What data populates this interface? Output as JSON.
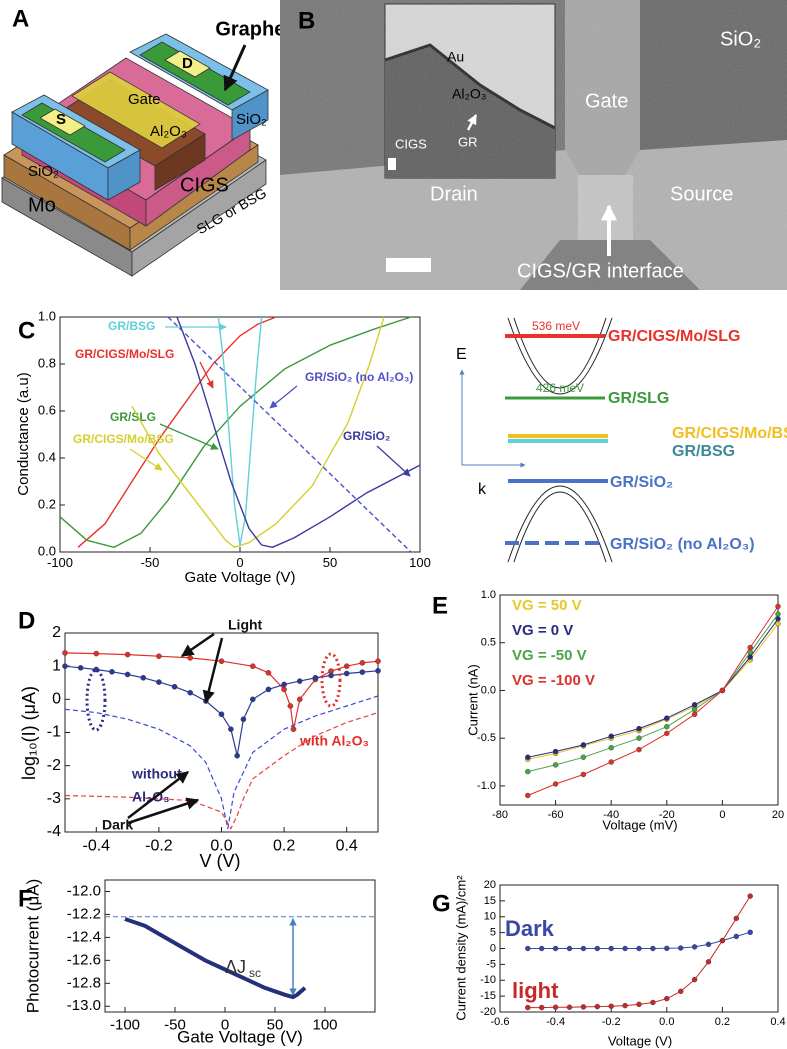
{
  "panel_a": {
    "label": "A",
    "labels": [
      "Graphene",
      "Gate",
      "D",
      "S",
      "Al₂O₃",
      "SiO₂",
      "SiO₂",
      "CIGS",
      "Mo",
      "SLG or BSG"
    ]
  },
  "panel_b": {
    "label": "B",
    "labels": [
      "SiO₂",
      "Gate",
      "Drain",
      "Source",
      "CIGS/GR interface"
    ],
    "inset_labels": [
      "Au",
      "Al₂O₃",
      "CIGS",
      "GR"
    ]
  },
  "band_diagram": {
    "levels": [
      "GR/CIGS/Mo/SLG",
      "GR/SLG",
      "GR/CIGS/Mo/BSG",
      "GR/BSG",
      "GR/SiO₂",
      "GR/SiO₂ (no Al₂O₃)"
    ],
    "energies": [
      "536 meV",
      "426 meV"
    ],
    "axes": [
      "E",
      "k"
    ]
  },
  "chart_data": [
    {
      "type": "line",
      "label": "C",
      "xlabel": "Gate Voltage (V)",
      "ylabel": "Conductance (a.u)",
      "xlim": [
        -100,
        100
      ],
      "xticks": [
        -100,
        -50,
        0,
        50,
        100
      ],
      "ylim": [
        0,
        1
      ],
      "yticks": [
        {
          "value": 0,
          "label": "0.0"
        },
        0.2,
        0.4,
        0.6,
        0.8,
        {
          "value": 1,
          "label": "1.0"
        }
      ],
      "series": [
        {
          "name": "GR/CIGS/Mo/SLG",
          "color": "#e8312a",
          "x": [
            -90,
            -75,
            -60,
            -45,
            -30,
            -15,
            0,
            10,
            20
          ],
          "values": [
            0.02,
            0.12,
            0.3,
            0.48,
            0.64,
            0.8,
            0.92,
            0.97,
            1.0
          ]
        },
        {
          "name": "GR/SLG",
          "color": "#3b9a3b",
          "x": [
            -100,
            -85,
            -70,
            -55,
            -40,
            -20,
            0,
            25,
            50,
            75,
            95
          ],
          "values": [
            0.15,
            0.05,
            0.02,
            0.08,
            0.22,
            0.45,
            0.62,
            0.78,
            0.88,
            0.95,
            1.0
          ]
        },
        {
          "name": "GR/CIGS/Mo/BSG",
          "color": "#d4cf2c",
          "x": [
            -60,
            -45,
            -35,
            -25,
            -15,
            -8,
            -3,
            5,
            20,
            40,
            60,
            72,
            80
          ],
          "values": [
            0.62,
            0.42,
            0.32,
            0.22,
            0.12,
            0.05,
            0.02,
            0.04,
            0.12,
            0.28,
            0.55,
            0.8,
            1.0
          ]
        },
        {
          "name": "GR/BSG",
          "color": "#5fcfd8",
          "x": [
            -12,
            -9,
            -6,
            -3,
            0,
            3,
            6,
            9,
            12
          ],
          "values": [
            1.0,
            0.8,
            0.5,
            0.2,
            0.03,
            0.15,
            0.45,
            0.75,
            1.0
          ]
        },
        {
          "name": "GR/SiO₂",
          "color": "#3a3aa0",
          "x": [
            -35,
            -25,
            -15,
            -5,
            5,
            12,
            18,
            30,
            50,
            70,
            100
          ],
          "values": [
            1.0,
            0.8,
            0.55,
            0.3,
            0.1,
            0.03,
            0.02,
            0.06,
            0.15,
            0.25,
            0.37
          ]
        },
        {
          "name": "GR/SiO₂ (no Al₂O₃)",
          "color": "#5050c8",
          "dashed": true,
          "x": [
            -40,
            95
          ],
          "values": [
            1.0,
            0.0
          ]
        }
      ]
    },
    {
      "type": "line",
      "label": "D",
      "xlabel": "V (V)",
      "ylabel": "log₁₀(I) (μA)",
      "xlim": [
        -0.5,
        0.5
      ],
      "xticks": [
        -0.4,
        -0.2,
        {
          "value": 0,
          "label": "0.0"
        },
        0.2,
        0.4
      ],
      "ylim": [
        -4,
        2
      ],
      "yticks": [
        -4,
        -3,
        -2,
        -1,
        0,
        1,
        2
      ],
      "annotations": [
        "Light",
        "Dark",
        "without",
        "Al₂O₃",
        "with Al₂O₃"
      ],
      "series": [
        {
          "color": "#e0302a",
          "marker": true,
          "x": [
            -0.5,
            -0.4,
            -0.3,
            -0.2,
            -0.1,
            0.0,
            0.1,
            0.15,
            0.2,
            0.22,
            0.23,
            0.25,
            0.3,
            0.35,
            0.4,
            0.45,
            0.5
          ],
          "values": [
            1.4,
            1.38,
            1.35,
            1.3,
            1.25,
            1.15,
            1.0,
            0.8,
            0.3,
            -0.2,
            -0.9,
            0.0,
            0.6,
            0.85,
            1.0,
            1.1,
            1.15
          ]
        },
        {
          "color": "#2b3a9a",
          "marker": true,
          "x": [
            -0.5,
            -0.45,
            -0.4,
            -0.35,
            -0.3,
            -0.25,
            -0.2,
            -0.15,
            -0.1,
            -0.05,
            0.0,
            0.03,
            0.05,
            0.07,
            0.1,
            0.15,
            0.2,
            0.25,
            0.3,
            0.35,
            0.4,
            0.45,
            0.5
          ],
          "values": [
            1.0,
            0.95,
            0.9,
            0.83,
            0.75,
            0.65,
            0.52,
            0.38,
            0.2,
            -0.05,
            -0.45,
            -0.9,
            -1.7,
            -0.6,
            0.0,
            0.3,
            0.45,
            0.55,
            0.65,
            0.72,
            0.78,
            0.82,
            0.86
          ]
        },
        {
          "color": "#3a4ad0",
          "dashed": true,
          "x": [
            -0.5,
            -0.4,
            -0.3,
            -0.2,
            -0.1,
            -0.05,
            0.0,
            0.02,
            0.04,
            0.1,
            0.2,
            0.3,
            0.4,
            0.5
          ],
          "values": [
            -0.3,
            -0.4,
            -0.6,
            -0.9,
            -1.4,
            -1.9,
            -3.0,
            -3.9,
            -2.8,
            -1.6,
            -0.9,
            -0.5,
            -0.2,
            0.1
          ]
        },
        {
          "color": "#e84040",
          "dashed": true,
          "x": [
            -0.5,
            -0.3,
            -0.1,
            0.0,
            0.03,
            0.05,
            0.07,
            0.1,
            0.2,
            0.3,
            0.4,
            0.5
          ],
          "values": [
            -2.9,
            -2.95,
            -3.05,
            -3.4,
            -3.9,
            -3.5,
            -3.0,
            -2.4,
            -1.7,
            -1.1,
            -0.7,
            -0.4
          ]
        }
      ]
    },
    {
      "type": "line",
      "label": "E",
      "xlabel": "Voltage (mV)",
      "ylabel": "Current (nA)",
      "xlim": [
        -80,
        20
      ],
      "xticks": [
        -80,
        -60,
        -40,
        -20,
        0,
        20
      ],
      "ylim": [
        -1.2,
        1.0
      ],
      "yticks": [
        {
          "value": -1,
          "label": "-1.0"
        },
        -0.5,
        {
          "value": 0,
          "label": "0.0"
        },
        0.5,
        {
          "value": 1,
          "label": "1.0"
        }
      ],
      "x": [
        -70,
        -60,
        -50,
        -40,
        -30,
        -20,
        -10,
        0,
        10,
        20
      ],
      "series": [
        {
          "name": "VG = 50 V",
          "color": "#e8c82a",
          "marker": true,
          "values": [
            -0.72,
            -0.66,
            -0.58,
            -0.5,
            -0.42,
            -0.3,
            -0.17,
            0.0,
            0.32,
            0.7
          ]
        },
        {
          "name": "VG = 0 V",
          "color": "#2b2b80",
          "marker": true,
          "values": [
            -0.7,
            -0.64,
            -0.57,
            -0.48,
            -0.4,
            -0.29,
            -0.15,
            0.0,
            0.35,
            0.75
          ]
        },
        {
          "name": "VG = -50 V",
          "color": "#4aa54a",
          "marker": true,
          "values": [
            -0.85,
            -0.78,
            -0.7,
            -0.6,
            -0.5,
            -0.38,
            -0.2,
            0.0,
            0.4,
            0.8
          ]
        },
        {
          "name": "VG = -100 V",
          "color": "#e0302a",
          "marker": true,
          "values": [
            -1.1,
            -0.98,
            -0.88,
            -0.75,
            -0.62,
            -0.45,
            -0.25,
            0.0,
            0.45,
            0.88
          ]
        }
      ]
    },
    {
      "type": "line",
      "label": "F",
      "xlabel": "Gate Voltage (V)",
      "ylabel": "Photocurrent (μA)",
      "xlim": [
        -120,
        150
      ],
      "xticks": [
        -100,
        -50,
        0,
        50,
        100
      ],
      "ylim": [
        -13.05,
        -11.9
      ],
      "yticks": [
        {
          "value": -13,
          "label": "-13.0"
        },
        -12.8,
        -12.6,
        -12.4,
        -12.2,
        {
          "value": -12,
          "label": "-12.0"
        }
      ],
      "hline": -12.22,
      "annotations": [
        "ΔJ",
        "sc"
      ],
      "series": [
        {
          "color": "#26307a",
          "x": [
            -100,
            -80,
            -60,
            -40,
            -20,
            0,
            20,
            40,
            60,
            68,
            72,
            80
          ],
          "values": [
            -12.24,
            -12.3,
            -12.4,
            -12.5,
            -12.6,
            -12.68,
            -12.76,
            -12.84,
            -12.9,
            -12.92,
            -12.9,
            -12.84
          ]
        }
      ]
    },
    {
      "type": "line",
      "label": "G",
      "xlabel": "Voltage (V)",
      "ylabel": "Current density (mA)/cm²",
      "xlim": [
        -0.6,
        0.4
      ],
      "xticks": [
        -0.6,
        -0.4,
        -0.2,
        {
          "value": 0,
          "label": "0.0"
        },
        0.2,
        0.4
      ],
      "ylim": [
        -20,
        20
      ],
      "yticks": [
        -20,
        -15,
        -10,
        -5,
        0,
        5,
        10,
        15,
        20
      ],
      "x": [
        -0.5,
        -0.45,
        -0.4,
        -0.35,
        -0.3,
        -0.25,
        -0.2,
        -0.15,
        -0.1,
        -0.05,
        0,
        0.05,
        0.1,
        0.15,
        0.2,
        0.25,
        0.3
      ],
      "series": [
        {
          "name": "Dark",
          "color": "#3848a8",
          "marker": true,
          "values": [
            0,
            0,
            0,
            0,
            0,
            0,
            0,
            0,
            0,
            0,
            0.05,
            0.15,
            0.5,
            1.3,
            2.5,
            3.8,
            5.1
          ]
        },
        {
          "name": "light",
          "color": "#c8282a",
          "marker": true,
          "values": [
            -18.6,
            -18.6,
            -18.5,
            -18.5,
            -18.4,
            -18.3,
            -18.2,
            -18.0,
            -17.6,
            -17.0,
            -15.8,
            -13.5,
            -9.8,
            -4.2,
            2.5,
            9.5,
            16.5
          ]
        }
      ]
    }
  ]
}
